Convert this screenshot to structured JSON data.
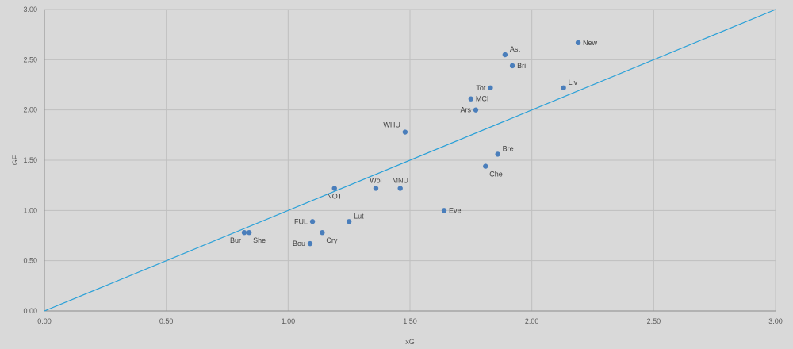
{
  "chart_data": {
    "type": "scatter",
    "title": "",
    "xlabel": "xG",
    "ylabel": "GF",
    "xlim": [
      0,
      3
    ],
    "ylim": [
      0,
      3
    ],
    "x_ticks": [
      "0.00",
      "0.50",
      "1.00",
      "1.50",
      "2.00",
      "2.50",
      "3.00"
    ],
    "y_ticks": [
      "0.00",
      "0.50",
      "1.00",
      "1.50",
      "2.00",
      "2.50",
      "3.00"
    ],
    "grid": true,
    "reference_line": {
      "from": [
        0,
        0
      ],
      "to": [
        3,
        3
      ]
    },
    "points": [
      {
        "label": "New",
        "x": 2.19,
        "y": 2.67,
        "pos": "right"
      },
      {
        "label": "Ast",
        "x": 1.89,
        "y": 2.55,
        "pos": "above-right"
      },
      {
        "label": "Bri",
        "x": 1.92,
        "y": 2.44,
        "pos": "right"
      },
      {
        "label": "Liv",
        "x": 2.13,
        "y": 2.22,
        "pos": "above-right"
      },
      {
        "label": "Tot",
        "x": 1.83,
        "y": 2.22,
        "pos": "left"
      },
      {
        "label": "MCI",
        "x": 1.75,
        "y": 2.11,
        "pos": "right"
      },
      {
        "label": "Ars",
        "x": 1.77,
        "y": 2.0,
        "pos": "left"
      },
      {
        "label": "WHU",
        "x": 1.48,
        "y": 1.78,
        "pos": "above-left"
      },
      {
        "label": "Bre",
        "x": 1.86,
        "y": 1.56,
        "pos": "above-right"
      },
      {
        "label": "Che",
        "x": 1.81,
        "y": 1.44,
        "pos": "below-right"
      },
      {
        "label": "Wol",
        "x": 1.36,
        "y": 1.22,
        "pos": "above"
      },
      {
        "label": "MNU",
        "x": 1.46,
        "y": 1.22,
        "pos": "above"
      },
      {
        "label": "NOT",
        "x": 1.19,
        "y": 1.22,
        "pos": "below"
      },
      {
        "label": "Eve",
        "x": 1.64,
        "y": 1.0,
        "pos": "right"
      },
      {
        "label": "Lut",
        "x": 1.25,
        "y": 0.89,
        "pos": "above-right"
      },
      {
        "label": "FUL",
        "x": 1.1,
        "y": 0.89,
        "pos": "left"
      },
      {
        "label": "Cry",
        "x": 1.14,
        "y": 0.78,
        "pos": "below-right"
      },
      {
        "label": "Bur",
        "x": 0.82,
        "y": 0.78,
        "pos": "below-left"
      },
      {
        "label": "She",
        "x": 0.84,
        "y": 0.78,
        "pos": "below-right"
      },
      {
        "label": "Bou",
        "x": 1.09,
        "y": 0.67,
        "pos": "left"
      }
    ],
    "colors": {
      "background": "#d9d9d9",
      "grid": "#bfbfbf",
      "axis": "#8c8c8c",
      "marker": "#4a7ebb",
      "reference_line": "#29a0d8"
    }
  }
}
